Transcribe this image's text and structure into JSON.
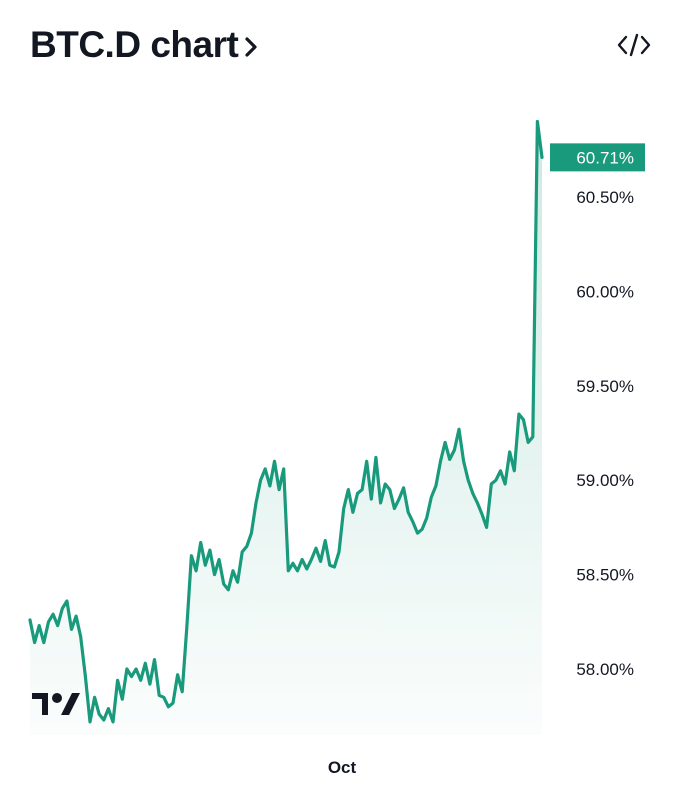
{
  "header": {
    "title": "BTC.D chart",
    "chevron_icon": "chevron-right-icon",
    "embed_icon": "code-embed-icon"
  },
  "logo": {
    "icon": "tradingview-logo-icon"
  },
  "colors": {
    "line": "#1a9a7c",
    "area_top": "#1a9a7c",
    "tag_bg": "#1a9a7c",
    "text": "#131722"
  },
  "chart_data": {
    "type": "area",
    "title": "BTC.D chart",
    "x_tick_labels": [
      "Oct"
    ],
    "y_tick_labels": [
      "60.50%",
      "60.00%",
      "59.50%",
      "59.00%",
      "58.50%",
      "58.00%"
    ],
    "y_ticks": [
      60.5,
      60.0,
      59.5,
      59.0,
      58.5,
      58.0
    ],
    "ylim": [
      57.7,
      61.0
    ],
    "last_value": 60.71,
    "last_value_label": "60.71%",
    "grid": false,
    "legend": "none",
    "series": [
      {
        "values": [
          58.26,
          58.14,
          58.23,
          58.14,
          58.25,
          58.29,
          58.23,
          58.32,
          58.36,
          58.21,
          58.28,
          58.17,
          57.96,
          57.72,
          57.85,
          57.76,
          57.73,
          57.79,
          57.72,
          57.94,
          57.84,
          58.0,
          57.96,
          58.0,
          57.94,
          58.03,
          57.92,
          58.05,
          57.86,
          57.85,
          57.8,
          57.82,
          57.97,
          57.88,
          58.22,
          58.6,
          58.52,
          58.67,
          58.55,
          58.63,
          58.5,
          58.58,
          58.45,
          58.42,
          58.52,
          58.46,
          58.62,
          58.65,
          58.72,
          58.88,
          59.0,
          59.06,
          58.97,
          59.1,
          58.95,
          59.06,
          58.52,
          58.56,
          58.52,
          58.58,
          58.53,
          58.58,
          58.64,
          58.57,
          58.68,
          58.55,
          58.54,
          58.62,
          58.85,
          58.95,
          58.83,
          58.93,
          58.95,
          59.1,
          58.9,
          59.12,
          58.88,
          58.98,
          58.95,
          58.85,
          58.9,
          58.96,
          58.83,
          58.78,
          58.72,
          58.74,
          58.8,
          58.91,
          58.97,
          59.1,
          59.2,
          59.11,
          59.16,
          59.27,
          59.1,
          59.0,
          58.93,
          58.88,
          58.82,
          58.75,
          58.98,
          59.0,
          59.05,
          58.98,
          59.15,
          59.05,
          59.35,
          59.32,
          59.2,
          59.23,
          60.9,
          60.71
        ]
      }
    ]
  }
}
